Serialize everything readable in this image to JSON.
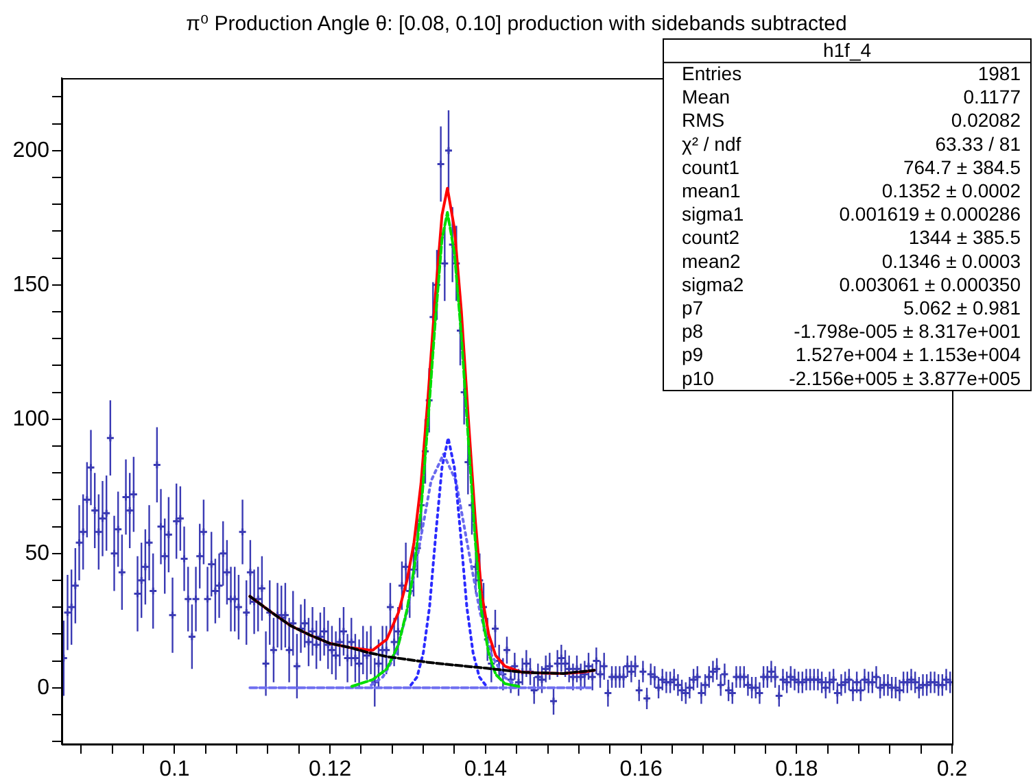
{
  "chart_data": {
    "type": "scatter",
    "title": "π⁰ Production Angle θ: [0.08, 0.10] production with sidebands subtracted",
    "xlim": [
      0.0855,
      0.2
    ],
    "xticks": [
      {
        "value": 0.088,
        "label": null
      },
      {
        "value": 0.092,
        "label": null
      },
      {
        "value": 0.096,
        "label": null
      },
      0.1,
      {
        "value": 0.104,
        "label": null
      },
      {
        "value": 0.108,
        "label": null
      },
      {
        "value": 0.112,
        "label": null
      },
      {
        "value": 0.116,
        "label": null
      },
      0.12,
      {
        "value": 0.124,
        "label": null
      },
      {
        "value": 0.128,
        "label": null
      },
      {
        "value": 0.132,
        "label": null
      },
      {
        "value": 0.136,
        "label": null
      },
      0.14,
      {
        "value": 0.144,
        "label": null
      },
      {
        "value": 0.148,
        "label": null
      },
      {
        "value": 0.152,
        "label": null
      },
      {
        "value": 0.156,
        "label": null
      },
      0.16,
      {
        "value": 0.164,
        "label": null
      },
      {
        "value": 0.168,
        "label": null
      },
      {
        "value": 0.172,
        "label": null
      },
      {
        "value": 0.176,
        "label": null
      },
      0.18,
      {
        "value": 0.184,
        "label": null
      },
      {
        "value": 0.188,
        "label": null
      },
      {
        "value": 0.192,
        "label": null
      },
      {
        "value": 0.196,
        "label": null
      },
      0.2
    ],
    "ylim": [
      -21,
      227
    ],
    "yticks": [
      {
        "value": -20,
        "label": null
      },
      {
        "value": -10,
        "label": null
      },
      0,
      {
        "value": 10,
        "label": null
      },
      {
        "value": 20,
        "label": null
      },
      {
        "value": 30,
        "label": null
      },
      {
        "value": 40,
        "label": null
      },
      50,
      {
        "value": 60,
        "label": null
      },
      {
        "value": 70,
        "label": null
      },
      {
        "value": 80,
        "label": null
      },
      {
        "value": 90,
        "label": null
      },
      100,
      {
        "value": 110,
        "label": null
      },
      {
        "value": 120,
        "label": null
      },
      {
        "value": 130,
        "label": null
      },
      {
        "value": 140,
        "label": null
      },
      150,
      {
        "value": 160,
        "label": null
      },
      {
        "value": 170,
        "label": null
      },
      {
        "value": 180,
        "label": null
      },
      {
        "value": 190,
        "label": null
      },
      200,
      {
        "value": 210,
        "label": null
      },
      {
        "value": 220,
        "label": null
      }
    ],
    "grid": false,
    "legend": false,
    "annotations": [
      "h1f_4",
      "Entries",
      "1981",
      "Mean",
      "0.1177",
      "RMS",
      "0.02082",
      "χ² / ndf",
      "63.33 / 81",
      "count1",
      "764.7 ± 384.5",
      "mean1",
      "0.1352 ± 0.0002",
      "sigma1",
      "0.001619 ± 0.000286",
      "count2",
      "1344 ± 385.5",
      "mean2",
      "0.1346 ± 0.0003",
      "sigma2",
      "0.003061 ± 0.000350",
      "p7",
      "5.062 ± 0.981",
      "p8",
      "-1.798e-005 ± 8.317e+001",
      "p9",
      "1.527e+004 ± 1.153e+004",
      "p10",
      "-2.156e+005 ± 3.877e+005"
    ],
    "series": [
      {
        "type": "scatter",
        "color": "#3a3ab4",
        "marker": "cross",
        "x": [
          0.08575,
          0.08625,
          0.08675,
          0.08725,
          0.08775,
          0.08825,
          0.08875,
          0.08925,
          0.08975,
          0.09025,
          0.09075,
          0.09125,
          0.09175,
          0.09225,
          0.09275,
          0.09325,
          0.09375,
          0.09425,
          0.09475,
          0.09525,
          0.09575,
          0.09625,
          0.09675,
          0.09725,
          0.09775,
          0.09825,
          0.09875,
          0.09925,
          0.09975,
          0.10025,
          0.10075,
          0.10125,
          0.10175,
          0.10225,
          0.10275,
          0.10325,
          0.10375,
          0.10425,
          0.10475,
          0.10525,
          0.10575,
          0.10625,
          0.10675,
          0.10725,
          0.10775,
          0.10825,
          0.10875,
          0.10925,
          0.10975,
          0.11025,
          0.11075,
          0.11125,
          0.11175,
          0.11225,
          0.11275,
          0.11325,
          0.11375,
          0.11425,
          0.11475,
          0.11525,
          0.11575,
          0.11625,
          0.11675,
          0.11725,
          0.11775,
          0.11825,
          0.11875,
          0.11925,
          0.11975,
          0.12025,
          0.12075,
          0.12125,
          0.12175,
          0.12225,
          0.12275,
          0.12325,
          0.12375,
          0.12425,
          0.12475,
          0.12525,
          0.12575,
          0.12625,
          0.12675,
          0.12725,
          0.12775,
          0.12825,
          0.12875,
          0.12925,
          0.12975,
          0.13025,
          0.13075,
          0.13125,
          0.13175,
          0.13225,
          0.13275,
          0.13325,
          0.13375,
          0.13425,
          0.13475,
          0.13525,
          0.13575,
          0.13625,
          0.13675,
          0.13725,
          0.13775,
          0.13825,
          0.13875,
          0.13925,
          0.13975,
          0.14025,
          0.14075,
          0.14125,
          0.14175,
          0.14225,
          0.14275,
          0.14325,
          0.14375,
          0.14425,
          0.14475,
          0.14525,
          0.14575,
          0.14625,
          0.14675,
          0.14725,
          0.14775,
          0.14825,
          0.14875,
          0.14925,
          0.14975,
          0.15025,
          0.15075,
          0.15125,
          0.15175,
          0.15225,
          0.15275,
          0.15325,
          0.15375,
          0.15425,
          0.15475,
          0.15525,
          0.15575,
          0.15625,
          0.15675,
          0.15725,
          0.15775,
          0.15825,
          0.15875,
          0.15925,
          0.15975,
          0.16025,
          0.16075,
          0.16125,
          0.16175,
          0.16225,
          0.16275,
          0.16325,
          0.16375,
          0.16425,
          0.16475,
          0.16525,
          0.16575,
          0.16625,
          0.16675,
          0.16725,
          0.16775,
          0.16825,
          0.16875,
          0.16925,
          0.16975,
          0.17025,
          0.17075,
          0.17125,
          0.17175,
          0.17225,
          0.17275,
          0.17325,
          0.17375,
          0.17425,
          0.17475,
          0.17525,
          0.17575,
          0.17625,
          0.17675,
          0.17725,
          0.17775,
          0.17825,
          0.17875,
          0.17925,
          0.17975,
          0.18025,
          0.18075,
          0.18125,
          0.18175,
          0.18225,
          0.18275,
          0.18325,
          0.18375,
          0.18425,
          0.18475,
          0.18525,
          0.18575,
          0.18625,
          0.18675,
          0.18725,
          0.18775,
          0.18825,
          0.18875,
          0.18925,
          0.18975,
          0.19025,
          0.19075,
          0.19125,
          0.19175,
          0.19225,
          0.19275,
          0.19325,
          0.19375,
          0.19425,
          0.19475,
          0.19525,
          0.19575,
          0.19625,
          0.19675,
          0.19725,
          0.19775,
          0.19825,
          0.19875,
          0.19925,
          0.19975
        ],
        "values": [
          11,
          28,
          30,
          38,
          54,
          58,
          70,
          82,
          66,
          58,
          63,
          65,
          93,
          50,
          59,
          43,
          71,
          66,
          72,
          35,
          40,
          45,
          54,
          36,
          83,
          60,
          49,
          57,
          27,
          62,
          63,
          48,
          33,
          19,
          33,
          49,
          58,
          33,
          46,
          36,
          38,
          50,
          43,
          33,
          33,
          30,
          58,
          28,
          43,
          32,
          33,
          37,
          9,
          28,
          14,
          27,
          26,
          27,
          14,
          24,
          8,
          22,
          24,
          17,
          21,
          16,
          19,
          21,
          16,
          14,
          12,
          17,
          21,
          11,
          17,
          11,
          9,
          14,
          12,
          14,
          2,
          9,
          14,
          14,
          30,
          17,
          21,
          38,
          45,
          36,
          44,
          52,
          68,
          88,
          107,
          138,
          150,
          195,
          158,
          200,
          165,
          158,
          133,
          110,
          84,
          68,
          45,
          40,
          30,
          18,
          9,
          22,
          10,
          5,
          14,
          3,
          8,
          2,
          6,
          9,
          6,
          -1,
          4,
          3,
          7,
          8,
          -5,
          9,
          11,
          9,
          7,
          4,
          7,
          4,
          5,
          8,
          4,
          10,
          5,
          8,
          -2,
          4,
          4,
          4,
          4,
          8,
          6,
          8,
          -1,
          6,
          -4,
          5,
          4,
          0,
          3,
          2,
          2,
          3,
          1,
          -1,
          -2,
          0,
          3,
          4,
          -2,
          1,
          4,
          6,
          7,
          1,
          5,
          -1,
          -2,
          4,
          4,
          4,
          1,
          0,
          0,
          -2,
          4,
          4,
          6,
          4,
          -3,
          3,
          2,
          4,
          3,
          2,
          2,
          3,
          3,
          3,
          3,
          2,
          0,
          2,
          3,
          -2,
          1,
          2,
          3,
          -1,
          2,
          -1,
          3,
          2,
          2,
          4,
          0,
          1,
          1,
          0,
          0,
          -1,
          2,
          2,
          3,
          2,
          0,
          1,
          1,
          2,
          2,
          1,
          1,
          3,
          2
        ],
        "errors": [
          14,
          14,
          14,
          14,
          14,
          14,
          14,
          14,
          14,
          14,
          14,
          14,
          14,
          14,
          14,
          14,
          14,
          14,
          14,
          14,
          14,
          14,
          14,
          14,
          14,
          14,
          14,
          14,
          14,
          14,
          12,
          12,
          12,
          12,
          12,
          12,
          12,
          12,
          12,
          12,
          12,
          12,
          12,
          12,
          12,
          12,
          12,
          12,
          12,
          12,
          12,
          12,
          12,
          12,
          12,
          12,
          12,
          12,
          12,
          12,
          12,
          9,
          9,
          9,
          9,
          9,
          9,
          9,
          9,
          9,
          9,
          9,
          9,
          9,
          9,
          9,
          9,
          9,
          9,
          9,
          9,
          9,
          9,
          9,
          9,
          9,
          9,
          9,
          9,
          10,
          10,
          11,
          11,
          12,
          12,
          13,
          13,
          14,
          14,
          15,
          14,
          14,
          13,
          12,
          12,
          11,
          10,
          10,
          9,
          8,
          7,
          7,
          6,
          6,
          5,
          5,
          5,
          5,
          5,
          5,
          5,
          5,
          5,
          5,
          5,
          5,
          5,
          5,
          5,
          5,
          5,
          5,
          5,
          5,
          5,
          5,
          5,
          5,
          5,
          5,
          5,
          4,
          4,
          4,
          4,
          4,
          4,
          4,
          4,
          4,
          4,
          4,
          4,
          4,
          4,
          4,
          4,
          4,
          4,
          4,
          4,
          4,
          4,
          4,
          4,
          4,
          4,
          4,
          4,
          4,
          4,
          4,
          4,
          4,
          4,
          4,
          4,
          4,
          4,
          4,
          4,
          4,
          4,
          4,
          4,
          4,
          4,
          4,
          4,
          4,
          4,
          4,
          4,
          4,
          4,
          4,
          4,
          4,
          4,
          4,
          4,
          4,
          4,
          4,
          4,
          4,
          4,
          4,
          4,
          4,
          4,
          4,
          4,
          4,
          4,
          4,
          4,
          4,
          4,
          4,
          4,
          4,
          4,
          4,
          4,
          4,
          4,
          4,
          4
        ],
        "xerrors": [
          0.00025,
          0.00025,
          0.00025,
          0.00025,
          0.00025,
          0.00025,
          0.00025,
          0.00025,
          0.00025,
          0.00025,
          0.00025,
          0.00025,
          0.00025,
          0.00025,
          0.00025,
          0.00025,
          0.00025,
          0.00025,
          0.00025,
          0.00025,
          0.00025,
          0.00025,
          0.00025,
          0.00025,
          0.00025,
          0.00025,
          0.00025,
          0.00025,
          0.00025,
          0.00025,
          0.00025,
          0.00025,
          0.00025,
          0.00025,
          0.00025,
          0.00025,
          0.00025,
          0.00025,
          0.00025,
          0.00025,
          0.00025,
          0.00025,
          0.00025,
          0.00025,
          0.00025,
          0.00025,
          0.00025,
          0.00025,
          0.00025,
          0.00025,
          0.00025,
          0.00025,
          0.00025,
          0.00025,
          0.00025,
          0.00025,
          0.00025,
          0.00025,
          0.00025,
          0.00025,
          0.00025,
          0.00025,
          0.00025,
          0.00025,
          0.00025,
          0.00025,
          0.00025,
          0.00025,
          0.00025,
          0.00025,
          0.00025,
          0.00025,
          0.00025,
          0.00025,
          0.00025,
          0.00025,
          0.00025,
          0.00025,
          0.00025,
          0.00025,
          0.00025,
          0.00025,
          0.00025,
          0.00025,
          0.00025,
          0.00025,
          0.00025,
          0.00025,
          0.00025,
          0.00025,
          0.00025,
          0.00025,
          0.00025,
          0.00025,
          0.00025,
          0.00025,
          0.00025,
          0.00025,
          0.00025,
          0.00025,
          0.00025,
          0.00025,
          0.00025,
          0.00025,
          0.00025,
          0.00025,
          0.00025,
          0.00025,
          0.00025,
          0.00025,
          0.00025,
          0.00025,
          0.00025,
          0.00025,
          0.00025,
          0.00025,
          0.00025,
          0.00025,
          0.00025,
          0.00025,
          0.00025,
          0.00025,
          0.00025,
          0.00025,
          0.00025,
          0.00025,
          0.00025,
          0.00025,
          0.00025,
          0.00025,
          0.00025,
          0.00025,
          0.00025,
          0.00025,
          0.00025,
          0.00025,
          0.00025,
          0.00025,
          0.00025,
          0.00025,
          0.00025,
          0.00025,
          0.00025,
          0.00025,
          0.00025,
          0.00025,
          0.00025,
          0.00025,
          0.00025,
          0.00025,
          0.00025,
          0.00025,
          0.00025,
          0.00025,
          0.00025,
          0.00025,
          0.00025,
          0.00025,
          0.00025,
          0.00025,
          0.00025,
          0.00025,
          0.00025,
          0.00025,
          0.00025,
          0.00025,
          0.00025,
          0.00025,
          0.00025,
          0.00025,
          0.00025,
          0.00025,
          0.00025,
          0.00025,
          0.00025,
          0.00025,
          0.00025,
          0.00025,
          0.00025,
          0.00025,
          0.00025,
          0.00025,
          0.00025,
          0.00025,
          0.00025,
          0.00025,
          0.00025,
          0.00025,
          0.00025,
          0.00025,
          0.00025,
          0.00025,
          0.00025,
          0.00025,
          0.00025,
          0.00025,
          0.00025,
          0.00025,
          0.00025,
          0.00025,
          0.00025,
          0.00025,
          0.00025,
          0.00025,
          0.00025,
          0.00025,
          0.00025,
          0.00025,
          0.00025,
          0.00025,
          0.00025,
          0.00025,
          0.00025,
          0.00025,
          0.00025,
          0.00025,
          0.00025,
          0.00025,
          0.00025,
          0.00025,
          0.00025,
          0.00025,
          0.00025,
          0.00025,
          0.00025,
          0.00025,
          0.00025,
          0.00025,
          0.00025
        ]
      },
      {
        "type": "line",
        "color": "#7070f0",
        "line_style": "dashed",
        "x": [
          0.1097,
          0.1535
        ],
        "values": [
          0,
          0
        ]
      },
      {
        "type": "line",
        "color": "#6a6aee",
        "line_style": "dotted",
        "x": [
          0.1253,
          0.1268,
          0.1284,
          0.1299,
          0.1315,
          0.133,
          0.1346,
          0.1362,
          0.1377,
          0.1393,
          0.1408,
          0.1424,
          0.1439
        ],
        "values": [
          1,
          4,
          12,
          28,
          53,
          77,
          87,
          77,
          53,
          28,
          12,
          4,
          1
        ]
      },
      {
        "type": "line",
        "color": "#2b2bff",
        "line_style": "dotted",
        "x": [
          0.1304,
          0.1312,
          0.132,
          0.1328,
          0.1336,
          0.1344,
          0.1352,
          0.136,
          0.1368,
          0.1376,
          0.1384,
          0.1392,
          0.14
        ],
        "values": [
          1,
          4,
          13,
          30,
          57,
          82,
          93,
          82,
          57,
          30,
          13,
          4,
          1
        ]
      },
      {
        "type": "line",
        "color": "#ff0000",
        "line_style": "solid",
        "x": [
          0.1097,
          0.1125,
          0.115,
          0.1175,
          0.12,
          0.1225,
          0.125,
          0.1255,
          0.1273,
          0.1288,
          0.1299,
          0.1308,
          0.1317,
          0.1326,
          0.1335,
          0.1344,
          0.1351,
          0.136,
          0.1369,
          0.1378,
          0.1387,
          0.1395,
          0.1404,
          0.1413,
          0.1425,
          0.1446,
          0.147,
          0.15,
          0.1525,
          0.154
        ],
        "values": [
          34,
          28,
          23,
          19.5,
          16.5,
          15,
          14,
          14,
          18,
          28,
          40,
          54,
          76,
          108,
          144,
          176,
          186,
          171,
          140,
          100,
          62,
          35,
          20,
          12,
          8,
          5.8,
          5.5,
          5.3,
          5.8,
          6.5
        ]
      },
      {
        "type": "line",
        "color": "#00dd00",
        "line_style": "dashed",
        "x": [
          0.1228,
          0.1255,
          0.1273,
          0.1288,
          0.1299,
          0.1308,
          0.1317,
          0.1326,
          0.1335,
          0.1344,
          0.1351,
          0.136,
          0.1369,
          0.1378,
          0.1387,
          0.1395,
          0.1404,
          0.1413,
          0.1425,
          0.1446
        ],
        "values": [
          0.5,
          3,
          7,
          16,
          29,
          44,
          66,
          99,
          135,
          167,
          177,
          162,
          131,
          92,
          54,
          28,
          13,
          5,
          1.5,
          0.3
        ]
      },
      {
        "type": "line",
        "color": "#000000",
        "line_style": "dashed",
        "x": [
          0.1097,
          0.1125,
          0.115,
          0.1175,
          0.12,
          0.1225,
          0.125,
          0.1275,
          0.13,
          0.1325,
          0.135,
          0.14,
          0.145,
          0.15,
          0.154
        ],
        "values": [
          34,
          28,
          23,
          19.5,
          16.5,
          15,
          13,
          11.5,
          10.5,
          9.5,
          8.7,
          7.3,
          5.7,
          5.3,
          6.5
        ]
      }
    ]
  }
}
